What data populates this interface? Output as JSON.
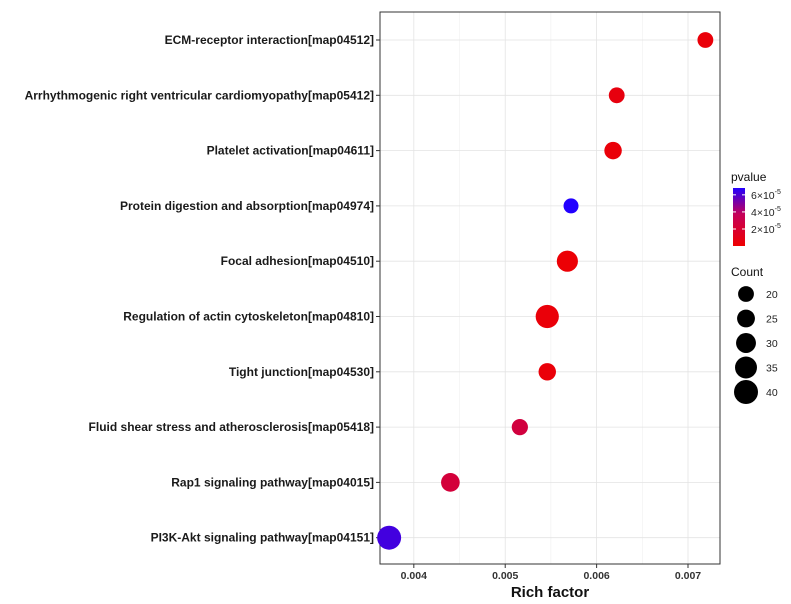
{
  "chart_data": {
    "type": "scatter",
    "subtype": "bubble",
    "title": "",
    "xlabel": "Rich factor",
    "ylabel": "",
    "xlim": [
      0.00363,
      0.00735
    ],
    "xticks": [
      0.004,
      0.005,
      0.006,
      0.007
    ],
    "xtick_labels": [
      "0.004",
      "0.005",
      "0.006",
      "0.007"
    ],
    "grid": true,
    "categories": [
      "ECM-receptor interaction[map04512]",
      "Arrhythmogenic right ventricular cardiomyopathy[map05412]",
      "Platelet activation[map04611]",
      "Protein digestion and absorption[map04974]",
      "Focal adhesion[map04510]",
      "Regulation of actin cytoskeleton[map04810]",
      "Tight junction[map04530]",
      "Fluid shear stress and atherosclerosis[map05418]",
      "Rap1 signaling pathway[map04015]",
      "PI3K-Akt signaling pathway[map04151]"
    ],
    "rich_factor": [
      0.00719,
      0.00622,
      0.00618,
      0.00572,
      0.00568,
      0.00546,
      0.00546,
      0.00516,
      0.0044,
      0.00373
    ],
    "count": [
      20,
      20,
      24,
      18,
      33,
      38,
      24,
      21,
      27,
      40
    ],
    "pvalue": [
      4e-06,
      6e-06,
      4e-06,
      6.8e-05,
      2e-06,
      4e-06,
      4e-06,
      2.6e-05,
      2.4e-05,
      6.2e-05
    ],
    "color_scale": {
      "title": "pvalue",
      "low_color": "#ee0000",
      "mid_color": "#c4005a",
      "high_color": "#2200ff",
      "domain": [
        1e-07,
        6.8e-05
      ],
      "ticks": [
        2e-05,
        4e-05,
        6e-05
      ],
      "tick_labels": [
        {
          "base": "2×10",
          "exp": "-5"
        },
        {
          "base": "4×10",
          "exp": "-5"
        },
        {
          "base": "6×10",
          "exp": "-5"
        }
      ]
    },
    "size_legend": {
      "title": "Count",
      "values": [
        20,
        25,
        30,
        35,
        40
      ],
      "labels": [
        "20",
        "25",
        "30",
        "35",
        "40"
      ]
    }
  }
}
